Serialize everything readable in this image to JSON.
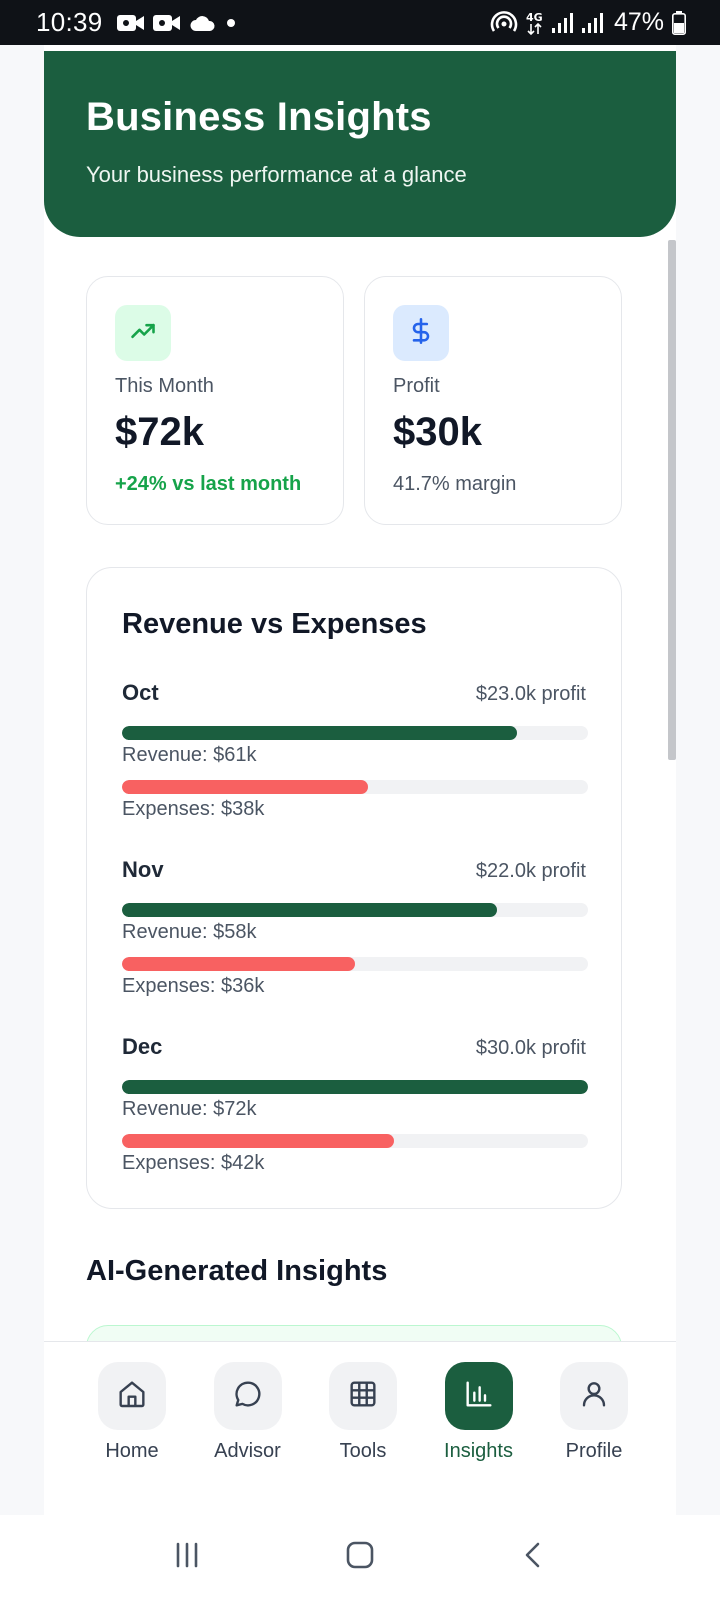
{
  "status_bar": {
    "time": "10:39",
    "battery": "47%",
    "icons_left": [
      "video-call-icon",
      "video-call-icon",
      "cloud-icon",
      "dot-icon"
    ],
    "icons_right": [
      "hotspot-icon",
      "4g-icon",
      "signal-icon",
      "signal-icon",
      "battery-icon"
    ]
  },
  "header": {
    "title": "Business Insights",
    "subtitle": "Your business performance at a glance"
  },
  "stats": [
    {
      "icon": "trending-up-icon",
      "label": "This Month",
      "value": "$72k",
      "sub": "+24% vs last month"
    },
    {
      "icon": "dollar-icon",
      "label": "Profit",
      "value": "$30k",
      "sub": "41.7% margin"
    }
  ],
  "revenue_card": {
    "title": "Revenue vs Expenses",
    "months": [
      {
        "name": "Oct",
        "profit": "$23.0k profit",
        "revenue_label": "Revenue: $61k",
        "expenses_label": "Expenses: $38k",
        "revenue": 61,
        "expenses": 38
      },
      {
        "name": "Nov",
        "profit": "$22.0k profit",
        "revenue_label": "Revenue: $58k",
        "expenses_label": "Expenses: $36k",
        "revenue": 58,
        "expenses": 36
      },
      {
        "name": "Dec",
        "profit": "$30.0k profit",
        "revenue_label": "Revenue: $72k",
        "expenses_label": "Expenses: $42k",
        "revenue": 72,
        "expenses": 42
      }
    ],
    "scale_max": 72
  },
  "insights_section": {
    "title": "AI-Generated Insights"
  },
  "bottom_nav": {
    "items": [
      {
        "label": "Home",
        "icon": "home-icon",
        "active": false
      },
      {
        "label": "Advisor",
        "icon": "chat-bubble-icon",
        "active": false
      },
      {
        "label": "Tools",
        "icon": "grid-icon",
        "active": false
      },
      {
        "label": "Insights",
        "icon": "bar-chart-icon",
        "active": true
      },
      {
        "label": "Profile",
        "icon": "user-icon",
        "active": false
      }
    ]
  },
  "colors": {
    "brand_green": "#1b5e3f",
    "expense_red": "#f86161",
    "positive_green": "#16a34a"
  }
}
